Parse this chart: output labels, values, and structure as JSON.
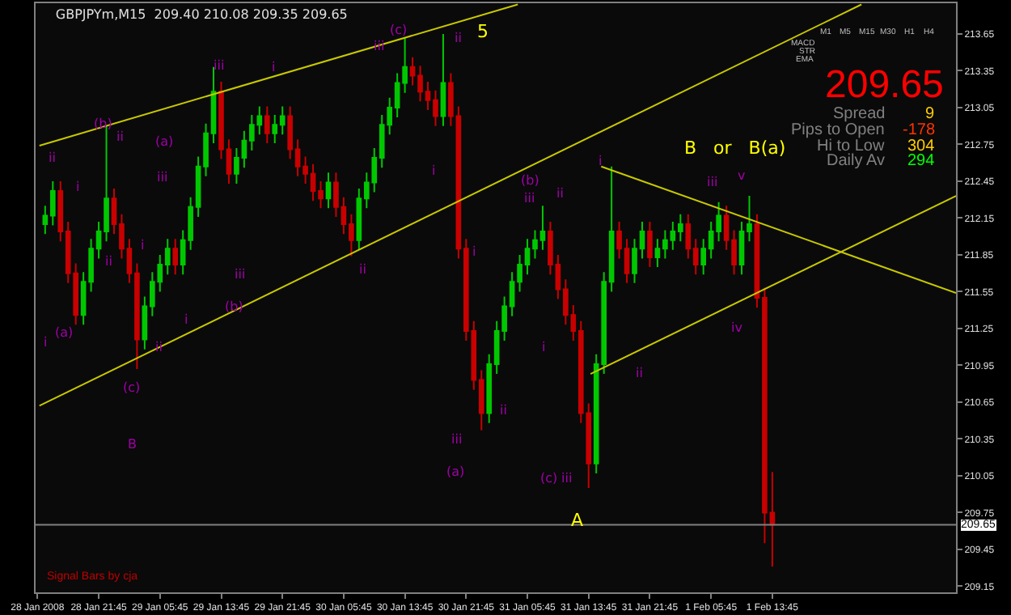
{
  "chart_data": {
    "type": "candlestick",
    "title": "GBPJPYm,M15  209.40 210.08 209.35 209.65",
    "x": [
      "2008-01-28T14:45",
      "2008-01-28T15:45",
      "2008-01-28T16:45",
      "2008-01-28T17:45",
      "2008-01-28T18:45",
      "2008-01-28T19:45",
      "2008-01-28T20:45",
      "2008-01-28T21:45",
      "2008-01-28T22:45",
      "2008-01-28T23:45",
      "2008-01-29T00:45",
      "2008-01-29T01:45",
      "2008-01-29T02:45",
      "2008-01-29T03:45",
      "2008-01-29T04:45",
      "2008-01-29T05:45",
      "2008-01-29T06:45",
      "2008-01-29T07:45",
      "2008-01-29T08:45",
      "2008-01-29T09:45",
      "2008-01-29T10:45",
      "2008-01-29T11:45",
      "2008-01-29T12:45",
      "2008-01-29T13:45",
      "2008-01-29T14:45",
      "2008-01-29T15:45",
      "2008-01-29T16:45",
      "2008-01-29T17:45",
      "2008-01-29T18:45",
      "2008-01-29T19:45",
      "2008-01-29T20:45",
      "2008-01-29T21:45",
      "2008-01-29T22:45",
      "2008-01-29T23:45",
      "2008-01-30T00:45",
      "2008-01-30T01:45",
      "2008-01-30T02:45",
      "2008-01-30T03:45",
      "2008-01-30T04:45",
      "2008-01-30T05:45",
      "2008-01-30T06:45",
      "2008-01-30T07:45",
      "2008-01-30T08:45",
      "2008-01-30T09:45",
      "2008-01-30T10:45",
      "2008-01-30T11:45",
      "2008-01-30T12:45",
      "2008-01-30T13:45",
      "2008-01-30T14:45",
      "2008-01-30T15:45",
      "2008-01-30T16:45",
      "2008-01-30T17:45",
      "2008-01-30T18:45",
      "2008-01-30T19:45",
      "2008-01-30T20:45",
      "2008-01-30T21:45",
      "2008-01-30T22:45",
      "2008-01-30T23:45",
      "2008-01-31T00:45",
      "2008-01-31T01:45",
      "2008-01-31T02:45",
      "2008-01-31T03:45",
      "2008-01-31T04:45",
      "2008-01-31T05:45",
      "2008-01-31T06:45",
      "2008-01-31T07:45",
      "2008-01-31T08:45",
      "2008-01-31T09:45",
      "2008-01-31T10:45",
      "2008-01-31T11:45",
      "2008-01-31T12:45",
      "2008-01-31T13:45",
      "2008-01-31T14:45",
      "2008-01-31T15:45",
      "2008-01-31T16:45",
      "2008-01-31T17:45",
      "2008-01-31T18:45",
      "2008-01-31T19:45",
      "2008-01-31T20:45",
      "2008-01-31T21:45",
      "2008-01-31T22:45",
      "2008-01-31T23:45",
      "2008-02-01T00:45",
      "2008-02-01T01:45",
      "2008-02-01T02:45",
      "2008-02-01T03:45",
      "2008-02-01T04:45",
      "2008-02-01T05:45",
      "2008-02-01T06:45",
      "2008-02-01T07:45",
      "2008-02-01T08:45",
      "2008-02-01T09:45",
      "2008-02-01T10:45",
      "2008-02-01T11:45",
      "2008-02-01T12:45",
      "2008-02-01T13:45"
    ],
    "ohlc": [
      [
        212.1,
        212.25,
        212.02,
        212.17
      ],
      [
        212.17,
        212.45,
        212.09,
        212.37
      ],
      [
        212.37,
        212.45,
        211.96,
        212.04
      ],
      [
        212.04,
        212.12,
        211.62,
        211.7
      ],
      [
        211.7,
        211.78,
        211.28,
        211.36
      ],
      [
        211.36,
        211.71,
        211.28,
        211.63
      ],
      [
        211.63,
        211.98,
        211.55,
        211.9
      ],
      [
        211.9,
        212.12,
        211.82,
        212.04
      ],
      [
        212.04,
        212.9,
        211.96,
        212.31
      ],
      [
        212.31,
        212.39,
        212.02,
        212.1
      ],
      [
        212.1,
        212.18,
        211.82,
        211.9
      ],
      [
        211.9,
        211.98,
        211.62,
        211.7
      ],
      [
        211.7,
        211.78,
        210.92,
        211.16
      ],
      [
        211.16,
        211.51,
        211.08,
        211.43
      ],
      [
        211.43,
        211.71,
        211.35,
        211.63
      ],
      [
        211.63,
        211.85,
        211.55,
        211.77
      ],
      [
        211.77,
        211.98,
        211.69,
        211.9
      ],
      [
        211.9,
        211.98,
        211.69,
        211.77
      ],
      [
        211.77,
        212.05,
        211.69,
        211.97
      ],
      [
        211.97,
        212.32,
        211.89,
        212.24
      ],
      [
        212.24,
        212.65,
        212.16,
        212.57
      ],
      [
        212.57,
        212.92,
        212.49,
        212.84
      ],
      [
        212.84,
        213.38,
        212.76,
        213.18
      ],
      [
        213.18,
        213.26,
        212.63,
        212.71
      ],
      [
        212.71,
        212.79,
        212.43,
        212.51
      ],
      [
        212.51,
        212.72,
        212.43,
        212.64
      ],
      [
        212.64,
        212.86,
        212.56,
        212.78
      ],
      [
        212.78,
        212.99,
        212.7,
        212.91
      ],
      [
        212.91,
        213.06,
        212.83,
        212.98
      ],
      [
        212.98,
        213.06,
        212.76,
        212.84
      ],
      [
        212.84,
        212.99,
        212.76,
        212.91
      ],
      [
        212.91,
        213.06,
        212.83,
        212.98
      ],
      [
        212.98,
        213.06,
        212.63,
        212.71
      ],
      [
        212.71,
        212.79,
        212.49,
        212.57
      ],
      [
        212.57,
        212.65,
        212.43,
        212.51
      ],
      [
        212.51,
        212.59,
        212.29,
        212.37
      ],
      [
        212.37,
        212.45,
        212.23,
        212.31
      ],
      [
        212.31,
        212.52,
        212.23,
        212.44
      ],
      [
        212.44,
        212.52,
        212.16,
        212.24
      ],
      [
        212.24,
        212.32,
        212.02,
        212.1
      ],
      [
        212.1,
        212.18,
        211.84,
        211.97
      ],
      [
        211.97,
        212.39,
        211.89,
        212.31
      ],
      [
        212.31,
        212.52,
        212.23,
        212.44
      ],
      [
        212.44,
        212.72,
        212.36,
        212.64
      ],
      [
        212.64,
        212.99,
        212.56,
        212.91
      ],
      [
        212.91,
        213.13,
        212.83,
        213.05
      ],
      [
        213.05,
        213.33,
        212.97,
        213.25
      ],
      [
        213.25,
        213.62,
        213.17,
        213.38
      ],
      [
        213.38,
        213.46,
        213.23,
        213.31
      ],
      [
        213.31,
        213.39,
        213.1,
        213.18
      ],
      [
        213.18,
        213.26,
        213.03,
        213.11
      ],
      [
        213.11,
        213.19,
        212.9,
        212.98
      ],
      [
        212.98,
        213.65,
        212.9,
        213.25
      ],
      [
        213.25,
        213.33,
        212.9,
        212.98
      ],
      [
        212.98,
        213.06,
        211.82,
        211.9
      ],
      [
        211.9,
        211.98,
        211.15,
        211.23
      ],
      [
        211.23,
        211.31,
        210.75,
        210.83
      ],
      [
        210.83,
        210.91,
        210.42,
        210.56
      ],
      [
        210.56,
        211.04,
        210.48,
        210.96
      ],
      [
        210.96,
        211.31,
        210.88,
        211.23
      ],
      [
        211.23,
        211.51,
        211.15,
        211.43
      ],
      [
        211.43,
        211.71,
        211.35,
        211.63
      ],
      [
        211.63,
        211.85,
        211.55,
        211.77
      ],
      [
        211.77,
        211.98,
        211.69,
        211.9
      ],
      [
        211.9,
        212.05,
        211.82,
        211.97
      ],
      [
        211.97,
        212.25,
        211.89,
        212.04
      ],
      [
        212.04,
        212.12,
        211.69,
        211.77
      ],
      [
        211.77,
        211.85,
        211.49,
        211.57
      ],
      [
        211.57,
        211.65,
        211.28,
        211.36
      ],
      [
        211.36,
        211.44,
        211.15,
        211.23
      ],
      [
        211.23,
        211.31,
        210.48,
        210.56
      ],
      [
        210.56,
        210.64,
        209.95,
        210.15
      ],
      [
        210.15,
        211.04,
        210.07,
        210.96
      ],
      [
        210.96,
        211.71,
        210.88,
        211.63
      ],
      [
        211.63,
        212.57,
        211.55,
        212.04
      ],
      [
        212.04,
        212.12,
        211.82,
        211.9
      ],
      [
        211.9,
        211.98,
        211.62,
        211.7
      ],
      [
        211.7,
        211.98,
        211.62,
        211.9
      ],
      [
        211.9,
        212.12,
        211.82,
        212.04
      ],
      [
        212.04,
        212.12,
        211.75,
        211.83
      ],
      [
        211.83,
        211.98,
        211.75,
        211.9
      ],
      [
        211.9,
        212.05,
        211.82,
        211.97
      ],
      [
        211.97,
        212.12,
        211.89,
        212.04
      ],
      [
        212.04,
        212.18,
        211.96,
        212.1
      ],
      [
        212.1,
        212.18,
        211.82,
        211.9
      ],
      [
        211.9,
        211.98,
        211.69,
        211.77
      ],
      [
        211.77,
        211.98,
        211.69,
        211.9
      ],
      [
        211.9,
        212.12,
        211.82,
        212.04
      ],
      [
        212.04,
        212.28,
        211.96,
        212.17
      ],
      [
        212.17,
        212.25,
        211.89,
        211.97
      ],
      [
        211.97,
        212.05,
        211.69,
        211.77
      ],
      [
        211.77,
        212.12,
        211.69,
        212.04
      ],
      [
        212.04,
        212.33,
        211.96,
        212.1
      ],
      [
        212.1,
        212.18,
        211.42,
        211.5
      ],
      [
        211.5,
        211.58,
        209.5,
        209.75
      ],
      [
        209.75,
        210.08,
        209.31,
        209.65
      ]
    ],
    "xlim": [
      "2008-01-28T13:30",
      "2008-02-02T13:45"
    ],
    "xticks": [
      {
        "value": "2008-01-28T13:45",
        "label": "28 Jan 2008"
      },
      {
        "value": "2008-01-28T21:45",
        "label": "28 Jan 21:45"
      },
      {
        "value": "2008-01-29T05:45",
        "label": "29 Jan 05:45"
      },
      {
        "value": "2008-01-29T13:45",
        "label": "29 Jan 13:45"
      },
      {
        "value": "2008-01-29T21:45",
        "label": "29 Jan 21:45"
      },
      {
        "value": "2008-01-30T05:45",
        "label": "30 Jan 05:45"
      },
      {
        "value": "2008-01-30T13:45",
        "label": "30 Jan 13:45"
      },
      {
        "value": "2008-01-30T21:45",
        "label": "30 Jan 21:45"
      },
      {
        "value": "2008-01-31T05:45",
        "label": "31 Jan 05:45"
      },
      {
        "value": "2008-01-31T13:45",
        "label": "31 Jan 13:45"
      },
      {
        "value": "2008-01-31T21:45",
        "label": "31 Jan 21:45"
      },
      {
        "value": "2008-02-01T05:45",
        "label": "1 Feb 05:45"
      },
      {
        "value": "2008-02-01T13:45",
        "label": "1 Feb 13:45"
      }
    ],
    "ylim": [
      209.1,
      213.9
    ],
    "yticks": [
      213.65,
      213.35,
      213.05,
      212.75,
      212.45,
      212.15,
      211.85,
      211.55,
      211.25,
      210.95,
      210.65,
      210.35,
      210.05,
      209.75,
      209.45,
      209.15
    ],
    "series": [
      {
        "type": "line",
        "color": "#c8c800",
        "x": [
          "2008-01-28T14:00",
          "2008-01-31T04:30"
        ],
        "values": [
          212.74,
          213.89
        ]
      },
      {
        "type": "line",
        "color": "#c8c800",
        "x": [
          "2008-01-28T14:00",
          "2008-02-02T01:24"
        ],
        "values": [
          210.62,
          213.89
        ]
      },
      {
        "type": "line",
        "color": "#c8c800",
        "x": [
          "2008-01-31T15:24",
          "2008-02-02T13:45"
        ],
        "values": [
          212.57,
          211.54
        ]
      },
      {
        "type": "line",
        "color": "#c8c800",
        "x": [
          "2008-01-31T14:00",
          "2008-02-02T13:45"
        ],
        "values": [
          210.88,
          212.33
        ]
      }
    ],
    "ref_lines": [
      {
        "axis": "y",
        "value": 209.65,
        "label": "209.65",
        "color": "#808080"
      }
    ],
    "annotations": [
      "ii",
      "(b)",
      "ii",
      "(a)",
      "iii",
      "i",
      "iii",
      "i",
      "iii",
      "(c)",
      "ii",
      "i",
      "ii",
      "i",
      "iii",
      "(b)",
      "i",
      "ii",
      "i",
      "(a)",
      "i",
      "(c)",
      "B",
      "ii",
      "iii",
      "(a)",
      "ii",
      "(b)",
      "iii",
      "ii",
      "i",
      "iii",
      "v",
      "i",
      "(c)",
      "iii",
      "ii",
      "iv",
      "5",
      "B   or   B(a)",
      "A",
      "M1",
      "M5",
      "M15",
      "M30",
      "H1",
      "H4",
      "MACD",
      "STR",
      "EMA",
      "209.65",
      "Spread",
      "9",
      "Pips to Open",
      "-178",
      "Hi to Low",
      "304",
      "Daily Av",
      "294",
      "Signal Bars by cja"
    ],
    "grid": false
  }
}
